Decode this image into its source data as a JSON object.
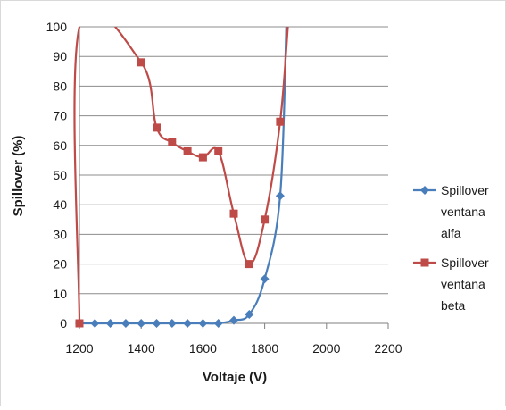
{
  "chart_data": {
    "type": "scatter",
    "title": "",
    "xlabel": "Voltaje (V)",
    "ylabel": "Spillover (%)",
    "xlim": [
      1200,
      2200
    ],
    "ylim": [
      0,
      100
    ],
    "xticks": [
      "1200",
      "1400",
      "1600",
      "1800",
      "2000",
      "2200"
    ],
    "yticks": [
      "0",
      "10",
      "20",
      "30",
      "40",
      "50",
      "60",
      "70",
      "80",
      "90",
      "100"
    ],
    "grid": "horizontal",
    "legend": "right",
    "series": [
      {
        "name": [
          "Spillover",
          "ventana",
          "alfa"
        ],
        "color": "#4a7ebb",
        "marker": "diamond",
        "x": [
          1200,
          1250,
          1300,
          1350,
          1400,
          1450,
          1500,
          1550,
          1600,
          1650,
          1700,
          1750,
          1800,
          1850,
          1870
        ],
        "y": [
          0,
          0,
          0,
          0,
          0,
          0,
          0,
          0,
          0,
          0,
          1,
          3,
          15,
          43,
          100
        ]
      },
      {
        "name": [
          "Spillover",
          "ventana",
          "beta"
        ],
        "color": "#be4b48",
        "marker": "square",
        "x": [
          1200,
          1200,
          1400,
          1450,
          1500,
          1550,
          1600,
          1650,
          1700,
          1750,
          1800,
          1850,
          1875
        ],
        "y": [
          0,
          100,
          88,
          66,
          61,
          58,
          56,
          58,
          37,
          20,
          35,
          68,
          100
        ]
      }
    ]
  }
}
